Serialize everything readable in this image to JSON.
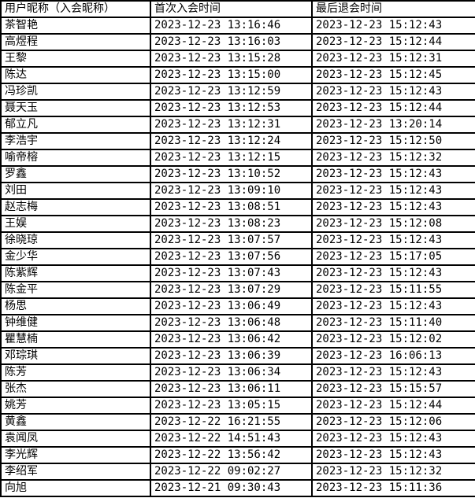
{
  "table": {
    "columns": [
      "用户昵称（入会昵称）",
      "首次入会时间",
      "最后退会时间"
    ],
    "rows": [
      {
        "name": "茶智艳",
        "first_join": "2023-12-23 13:16:46",
        "last_leave": "2023-12-23 15:12:43"
      },
      {
        "name": "高煜程",
        "first_join": "2023-12-23 13:16:03",
        "last_leave": "2023-12-23 15:12:44"
      },
      {
        "name": "王黎",
        "first_join": "2023-12-23 13:15:28",
        "last_leave": "2023-12-23 15:12:31"
      },
      {
        "name": "陈达",
        "first_join": "2023-12-23 13:15:00",
        "last_leave": "2023-12-23 15:12:45"
      },
      {
        "name": "冯珍凯",
        "first_join": "2023-12-23 13:12:59",
        "last_leave": "2023-12-23 15:12:43"
      },
      {
        "name": "聂天玉",
        "first_join": "2023-12-23 13:12:53",
        "last_leave": "2023-12-23 15:12:44"
      },
      {
        "name": "郁立凡",
        "first_join": "2023-12-23 13:12:31",
        "last_leave": "2023-12-23 13:20:14"
      },
      {
        "name": "李浩宇",
        "first_join": "2023-12-23 13:12:24",
        "last_leave": "2023-12-23 15:12:50"
      },
      {
        "name": "喻帝榕",
        "first_join": "2023-12-23 13:12:15",
        "last_leave": "2023-12-23 15:12:32"
      },
      {
        "name": "罗鑫",
        "first_join": "2023-12-23 13:10:52",
        "last_leave": "2023-12-23 15:12:43"
      },
      {
        "name": "刘田",
        "first_join": "2023-12-23 13:09:10",
        "last_leave": "2023-12-23 15:12:43"
      },
      {
        "name": "赵志梅",
        "first_join": "2023-12-23 13:08:51",
        "last_leave": "2023-12-23 15:12:43"
      },
      {
        "name": "王娱",
        "first_join": "2023-12-23 13:08:23",
        "last_leave": "2023-12-23 15:12:08"
      },
      {
        "name": "徐晓琼",
        "first_join": "2023-12-23 13:07:57",
        "last_leave": "2023-12-23 15:12:43"
      },
      {
        "name": "金少华",
        "first_join": "2023-12-23 13:07:56",
        "last_leave": "2023-12-23 15:17:05"
      },
      {
        "name": "陈紫辉",
        "first_join": "2023-12-23 13:07:43",
        "last_leave": "2023-12-23 15:12:43"
      },
      {
        "name": "陈金平",
        "first_join": "2023-12-23 13:07:29",
        "last_leave": "2023-12-23 15:11:55"
      },
      {
        "name": "杨思",
        "first_join": "2023-12-23 13:06:49",
        "last_leave": "2023-12-23 15:12:43"
      },
      {
        "name": "钟维健",
        "first_join": "2023-12-23 13:06:48",
        "last_leave": "2023-12-23 15:11:40"
      },
      {
        "name": "瞿慧楠",
        "first_join": "2023-12-23 13:06:42",
        "last_leave": "2023-12-23 15:12:02"
      },
      {
        "name": "邓琮琪",
        "first_join": "2023-12-23 13:06:39",
        "last_leave": "2023-12-23 16:06:13"
      },
      {
        "name": "陈芳",
        "first_join": "2023-12-23 13:06:34",
        "last_leave": "2023-12-23 15:12:43"
      },
      {
        "name": "张杰",
        "first_join": "2023-12-23 13:06:11",
        "last_leave": "2023-12-23 15:15:57"
      },
      {
        "name": "姚芳",
        "first_join": "2023-12-23 13:05:15",
        "last_leave": "2023-12-23 15:12:44"
      },
      {
        "name": "黄鑫",
        "first_join": "2023-12-22 16:21:55",
        "last_leave": "2023-12-23 15:12:06"
      },
      {
        "name": "袁闻凤",
        "first_join": "2023-12-22 14:51:43",
        "last_leave": "2023-12-23 15:12:43"
      },
      {
        "name": "李光辉",
        "first_join": "2023-12-22 13:56:42",
        "last_leave": "2023-12-23 15:12:43"
      },
      {
        "name": "李绍军",
        "first_join": "2023-12-22 09:02:27",
        "last_leave": "2023-12-23 15:12:32"
      },
      {
        "name": "向旭",
        "first_join": "2023-12-21 09:30:43",
        "last_leave": "2023-12-23 15:11:36"
      }
    ]
  }
}
